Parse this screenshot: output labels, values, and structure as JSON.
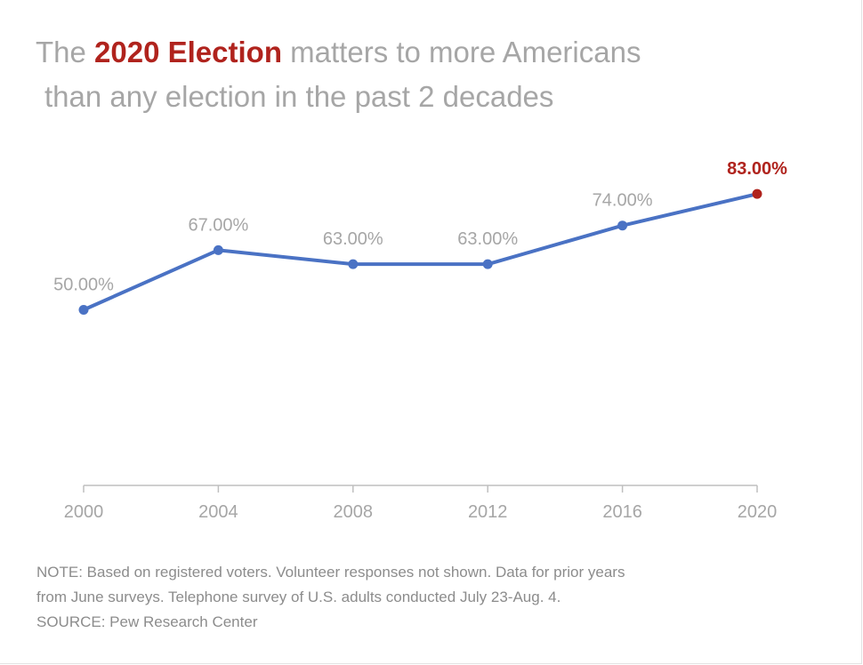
{
  "title": {
    "prefix": "The ",
    "highlight": "2020 Election",
    "rest": " matters to more Americans",
    "line2": "than any election in the past 2 decades"
  },
  "colors": {
    "line": "#4a72c4",
    "label": "#a6a6a6",
    "highlight": "#b0231d",
    "axis": "#bfbfbf"
  },
  "chart_data": {
    "type": "line",
    "x": [
      "2000",
      "2004",
      "2008",
      "2012",
      "2016",
      "2020"
    ],
    "series": [
      {
        "values": [
          50,
          67,
          63,
          63,
          74,
          83
        ],
        "data_labels": [
          "50.00%",
          "67.00%",
          "63.00%",
          "63.00%",
          "74.00%",
          "83.00%"
        ]
      }
    ],
    "highlighted_index": 5,
    "xlabel": "",
    "ylabel": "",
    "grid": false,
    "ylim": [
      0,
      100
    ]
  },
  "notes": {
    "line1": "NOTE: Based on registered voters. Volunteer responses not shown. Data for prior years",
    "line2": "from June surveys. Telephone survey of U.S. adults conducted July 23-Aug. 4.",
    "source": "SOURCE: Pew Research Center"
  }
}
